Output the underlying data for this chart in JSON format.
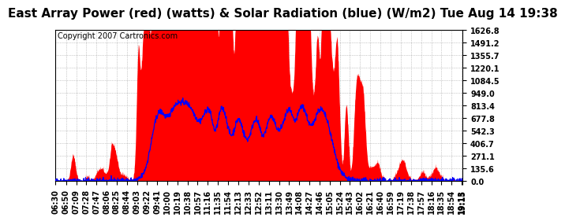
{
  "title": "East Array Power (red) (watts) & Solar Radiation (blue) (W/m2) Tue Aug 14 19:38",
  "copyright": "Copyright 2007 Cartronics.com",
  "background_color": "#ffffff",
  "plot_bg_color": "#ffffff",
  "grid_color": "#888888",
  "ymin": 0.0,
  "ymax": 1626.8,
  "yticks": [
    0.0,
    135.6,
    271.1,
    406.7,
    542.3,
    677.8,
    813.4,
    949.0,
    1084.5,
    1220.1,
    1355.7,
    1491.2,
    1626.8
  ],
  "xlabel_times": [
    "06:30",
    "06:50",
    "07:09",
    "07:28",
    "07:47",
    "08:06",
    "08:25",
    "08:44",
    "09:03",
    "09:22",
    "09:41",
    "10:00",
    "10:19",
    "10:38",
    "10:57",
    "11:16",
    "11:35",
    "11:54",
    "12:13",
    "12:33",
    "12:52",
    "13:11",
    "13:30",
    "13:49",
    "14:08",
    "14:27",
    "14:46",
    "15:05",
    "15:24",
    "15:43",
    "16:02",
    "16:21",
    "16:40",
    "16:59",
    "17:19",
    "17:38",
    "17:57",
    "18:16",
    "18:35",
    "18:54",
    "19:13",
    "19:15"
  ],
  "red_fill_color": "#ff0000",
  "blue_line_color": "#0000ff",
  "title_fontsize": 11,
  "tick_fontsize": 7,
  "copyright_fontsize": 7
}
